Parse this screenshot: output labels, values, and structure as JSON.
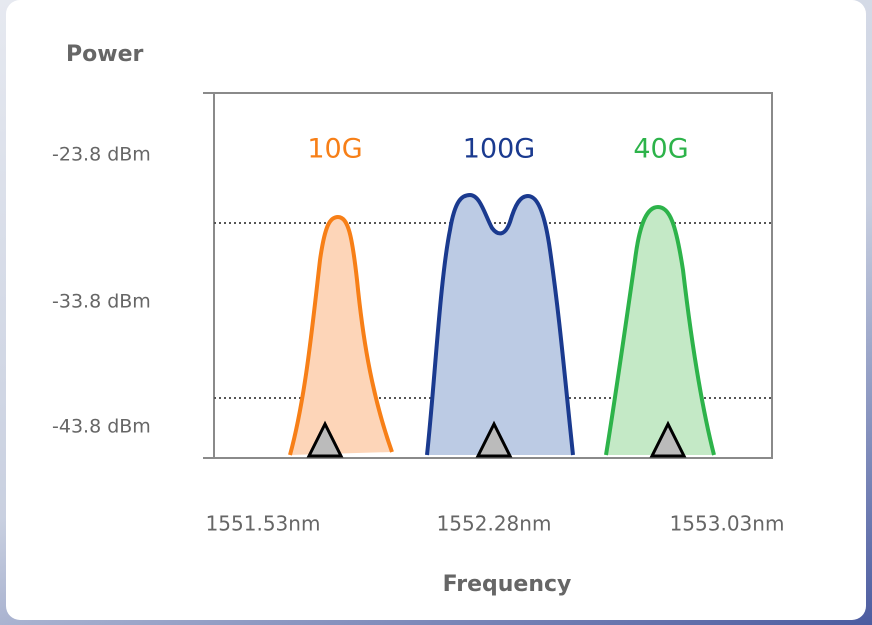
{
  "axis": {
    "title": "Power",
    "ticks": [
      "-23.8 dBm",
      "-33.8 dBm",
      "-43.8 dBm"
    ],
    "x_labels": [
      "1551.53nm",
      "1552.28nm",
      "1553.03nm"
    ],
    "x_title": "Frequency"
  },
  "channels": [
    {
      "label": "10G"
    },
    {
      "label": "100G"
    },
    {
      "label": "40G"
    }
  ]
}
